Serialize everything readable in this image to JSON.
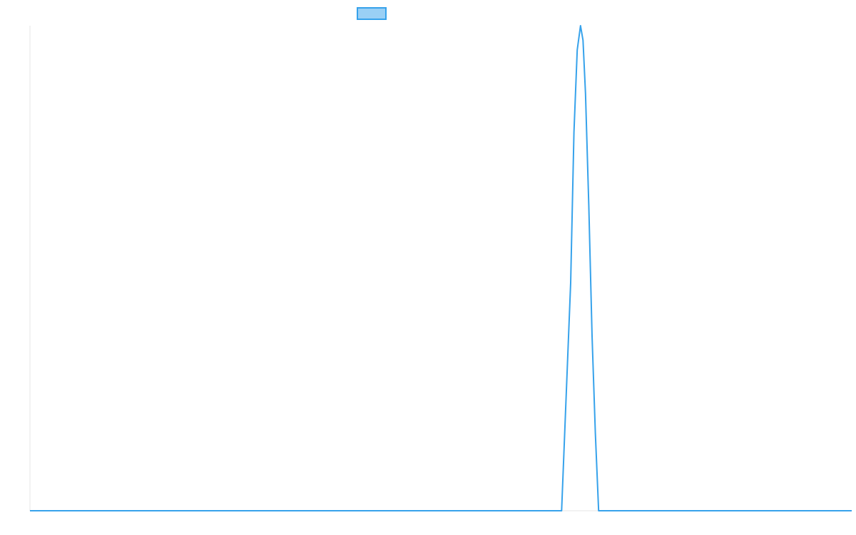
{
  "chart_data": {
    "type": "line",
    "title": "",
    "xlabel": "",
    "ylabel": "",
    "legend": {
      "placement": "top",
      "entries": [
        {
          "name": "",
          "color": "#36a2eb",
          "fill": "#9ad0f5"
        }
      ]
    },
    "grid": false,
    "xlim": [
      0,
      100
    ],
    "ylim": [
      0,
      1
    ],
    "series": [
      {
        "name": "",
        "color": "#36a2eb",
        "x": [
          0,
          10,
          20,
          30,
          40,
          50,
          60,
          64.7,
          65.8,
          66.2,
          66.6,
          67.0,
          67.3,
          67.6,
          68.0,
          68.4,
          68.8,
          69.2,
          70.3,
          75,
          80,
          90,
          100
        ],
        "values": [
          0,
          0,
          0,
          0,
          0,
          0,
          0,
          0,
          0.47,
          0.78,
          0.95,
          1.0,
          0.97,
          0.86,
          0.63,
          0.36,
          0.16,
          0,
          0,
          0,
          0,
          0,
          0
        ]
      }
    ]
  }
}
